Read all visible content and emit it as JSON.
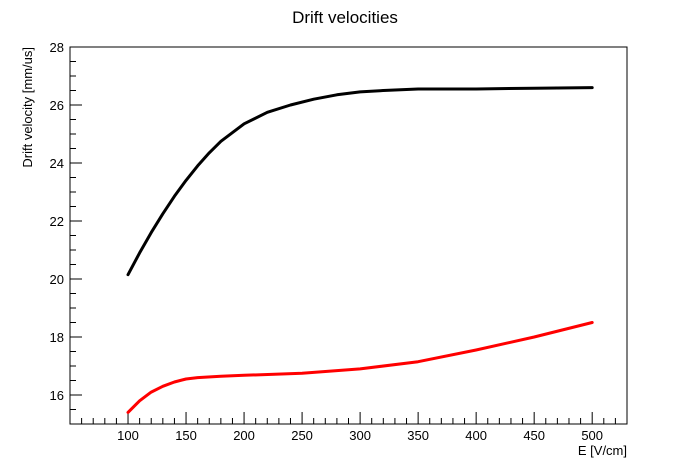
{
  "chart_data": {
    "type": "line",
    "title": "Drift velocities",
    "xlabel": "E [V/cm]",
    "ylabel": "Drift velocity [mm/us]",
    "xlim": [
      50,
      530
    ],
    "ylim": [
      15,
      28
    ],
    "x_ticks": [
      100,
      150,
      200,
      250,
      300,
      350,
      400,
      450,
      500
    ],
    "y_ticks": [
      16,
      18,
      20,
      22,
      24,
      26,
      28
    ],
    "grid": false,
    "series": [
      {
        "name": "black",
        "color": "#000000",
        "x": [
          100,
          110,
          120,
          130,
          140,
          150,
          160,
          170,
          180,
          190,
          200,
          220,
          240,
          260,
          280,
          300,
          320,
          350,
          400,
          450,
          500
        ],
        "y": [
          20.15,
          20.9,
          21.6,
          22.25,
          22.85,
          23.4,
          23.9,
          24.35,
          24.75,
          25.05,
          25.35,
          25.75,
          26.0,
          26.2,
          26.35,
          26.45,
          26.5,
          26.55,
          26.55,
          26.58,
          26.6
        ]
      },
      {
        "name": "red",
        "color": "#ff0000",
        "x": [
          100,
          110,
          120,
          130,
          140,
          150,
          160,
          180,
          200,
          250,
          300,
          350,
          400,
          450,
          500
        ],
        "y": [
          15.4,
          15.8,
          16.1,
          16.3,
          16.45,
          16.55,
          16.6,
          16.65,
          16.68,
          16.75,
          16.9,
          17.15,
          17.55,
          18.0,
          18.5
        ]
      }
    ]
  }
}
